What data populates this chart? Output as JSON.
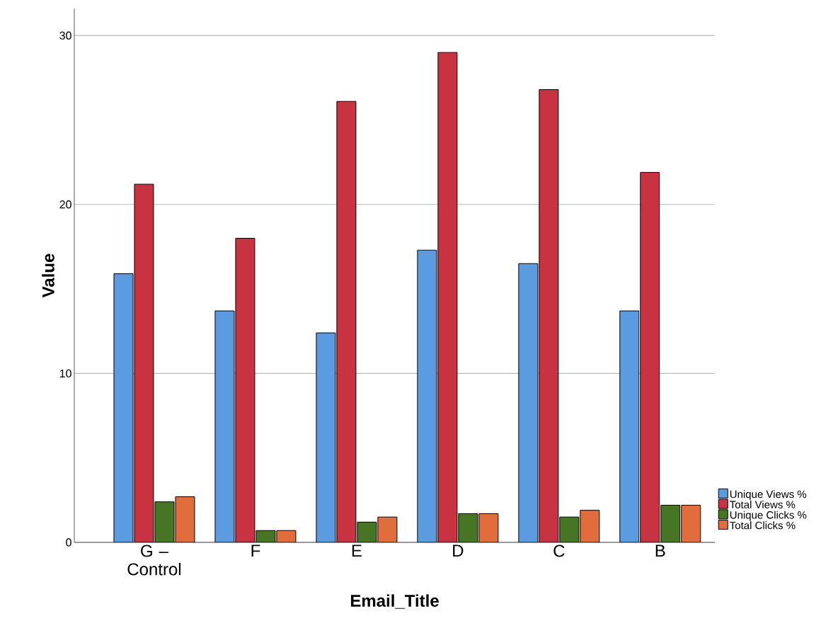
{
  "chart_data": {
    "type": "bar",
    "xlabel": "Email_Title",
    "ylabel": "Value",
    "categories": [
      "G – Control",
      "F",
      "E",
      "D",
      "C",
      "B"
    ],
    "series": [
      {
        "name": "Unique Views %",
        "color": "#5b9be0",
        "values": [
          15.9,
          13.7,
          12.4,
          17.3,
          16.5,
          13.7
        ]
      },
      {
        "name": "Total Views %",
        "color": "#c83241",
        "values": [
          21.2,
          18.0,
          26.1,
          29.0,
          26.8,
          21.9
        ]
      },
      {
        "name": "Unique Clicks %",
        "color": "#467524",
        "values": [
          2.4,
          0.7,
          1.2,
          1.7,
          1.5,
          2.2
        ]
      },
      {
        "name": "Total Clicks %",
        "color": "#e06d3b",
        "values": [
          2.7,
          0.7,
          1.5,
          1.7,
          1.9,
          2.2
        ]
      }
    ],
    "ylim": [
      0,
      31.6
    ],
    "yticks": [
      0,
      10,
      20,
      30
    ],
    "grid": "y",
    "legend": "bottom right"
  }
}
